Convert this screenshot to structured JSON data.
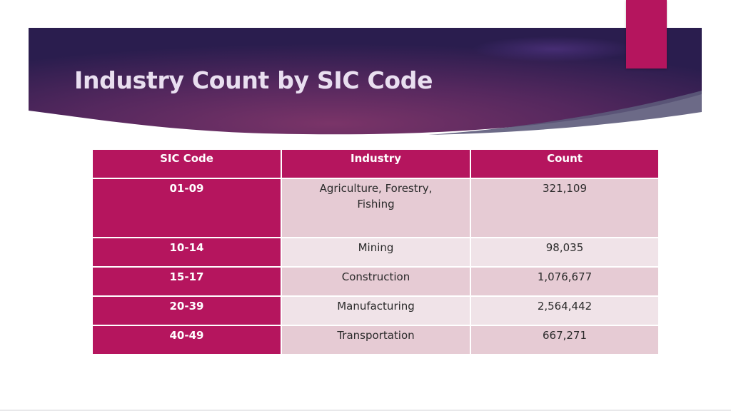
{
  "slide": {
    "title": "Industry Count by SIC Code",
    "colors": {
      "accent": "#b5155e",
      "header_dark": "#2a1d4e",
      "header_mid": "#6b2f63",
      "row_dark": "#e6cbd4",
      "row_light": "#f0e3e8"
    }
  },
  "table": {
    "headers": [
      "SIC Code",
      "Industry",
      "Count"
    ],
    "rows": [
      {
        "code": "01-09",
        "industry": "Agriculture, Forestry, Fishing",
        "count": "321,109"
      },
      {
        "code": "10-14",
        "industry": "Mining",
        "count": "98,035"
      },
      {
        "code": "15-17",
        "industry": "Construction",
        "count": "1,076,677"
      },
      {
        "code": "20-39",
        "industry": "Manufacturing",
        "count": "2,564,442"
      },
      {
        "code": "40-49",
        "industry": "Transportation",
        "count": "667,271"
      }
    ]
  }
}
